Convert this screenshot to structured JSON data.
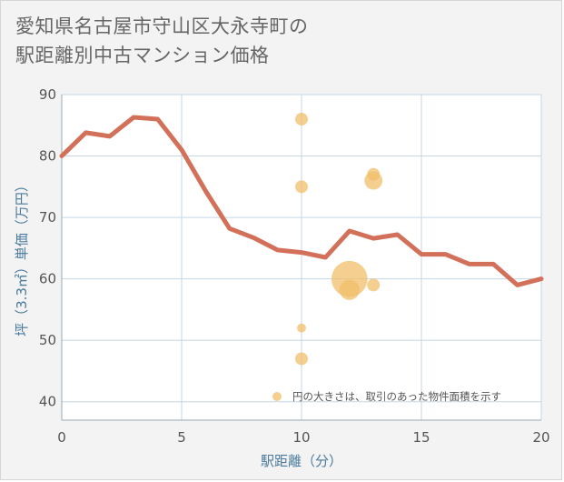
{
  "title_lines": [
    "愛知県名古屋市守山区大永寺町の",
    "駅距離別中古マンション価格"
  ],
  "chart_data": {
    "type": "line+scatter",
    "title": "愛知県名古屋市守山区大永寺町の駅距離別中古マンション価格",
    "xlabel": "駅距離（分）",
    "ylabel": "坪（3.3㎡）単価（万円）",
    "xlim": [
      0,
      20
    ],
    "ylim": [
      37,
      90
    ],
    "x_ticks": [
      0,
      5,
      10,
      15,
      20
    ],
    "y_ticks": [
      40,
      50,
      60,
      70,
      80,
      90
    ],
    "grid": true,
    "series": [
      {
        "type": "line",
        "color": "#d2705a",
        "x": [
          0,
          1,
          2,
          3,
          4,
          5,
          6,
          7,
          8,
          9,
          10,
          11,
          12,
          13,
          14,
          15,
          16,
          17,
          18,
          19,
          20
        ],
        "y": [
          80.0,
          83.8,
          83.2,
          86.3,
          86.0,
          81.0,
          74.3,
          68.2,
          66.7,
          64.7,
          64.3,
          63.5,
          67.8,
          66.6,
          67.2,
          64.0,
          64.0,
          62.4,
          62.4,
          59.0,
          60.0
        ]
      },
      {
        "type": "bubble",
        "color": "#f0bf6a",
        "points": [
          {
            "x": 10,
            "y": 86,
            "size": 1
          },
          {
            "x": 10,
            "y": 75,
            "size": 1
          },
          {
            "x": 10,
            "y": 52,
            "size": 0.5
          },
          {
            "x": 10,
            "y": 47,
            "size": 1
          },
          {
            "x": 12,
            "y": 60,
            "size": 8
          },
          {
            "x": 12,
            "y": 58.2,
            "size": 2.5
          },
          {
            "x": 13,
            "y": 77,
            "size": 1
          },
          {
            "x": 13,
            "y": 76,
            "size": 2
          },
          {
            "x": 13,
            "y": 59,
            "size": 1
          }
        ]
      }
    ],
    "legend_note": {
      "marker_color": "#f0bf6a",
      "text": "円の大きさは、取引のあった物件面積を示す"
    }
  }
}
